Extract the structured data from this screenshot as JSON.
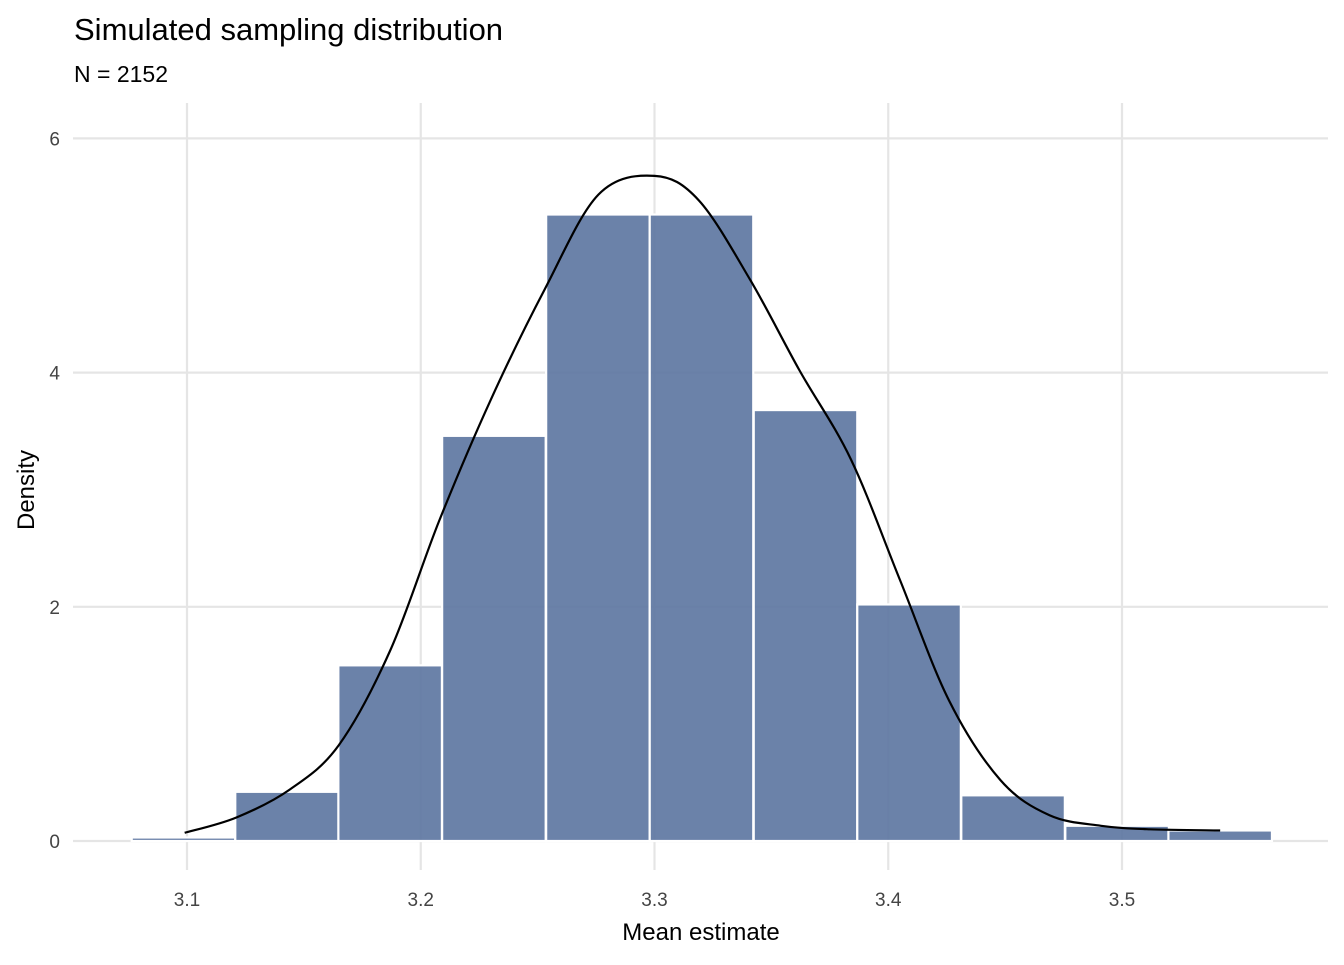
{
  "chart_data": {
    "type": "bar",
    "title": "Simulated sampling distribution",
    "subtitle": "N = 2152",
    "xlabel": "Mean estimate",
    "ylabel": "Density",
    "xlim": [
      3.065,
      3.58
    ],
    "ylim": [
      -0.25,
      6.3
    ],
    "grid": true,
    "x_ticks": [
      3.1,
      3.2,
      3.3,
      3.4,
      3.5
    ],
    "x_tick_labels": [
      "3.1",
      "3.2",
      "3.3",
      "3.4",
      "3.5"
    ],
    "y_ticks": [
      0,
      2,
      4,
      6
    ],
    "y_tick_labels": [
      "0",
      "2",
      "4",
      "6"
    ],
    "bin_width": 0.0443,
    "histogram": {
      "bin_centers": [
        3.0985,
        3.1428,
        3.1869,
        3.2313,
        3.2758,
        3.3201,
        3.3646,
        3.4089,
        3.4534,
        3.4979,
        3.542
      ],
      "density": [
        0.03,
        0.42,
        1.5,
        3.46,
        5.35,
        5.35,
        3.68,
        2.02,
        0.39,
        0.13,
        0.09
      ]
    },
    "density_curve": {
      "x": [
        3.099,
        3.121,
        3.144,
        3.165,
        3.187,
        3.208,
        3.23,
        3.253,
        3.276,
        3.3,
        3.319,
        3.341,
        3.362,
        3.384,
        3.405,
        3.426,
        3.448,
        3.469,
        3.491,
        3.512,
        3.542
      ],
      "y": [
        0.07,
        0.2,
        0.44,
        0.82,
        1.63,
        2.74,
        3.77,
        4.71,
        5.52,
        5.68,
        5.47,
        4.79,
        4.02,
        3.26,
        2.23,
        1.2,
        0.52,
        0.22,
        0.13,
        0.1,
        0.09
      ]
    },
    "colors": {
      "bar": "#5E77A2",
      "curve": "#000000",
      "grid": "#E5E5E5"
    }
  }
}
